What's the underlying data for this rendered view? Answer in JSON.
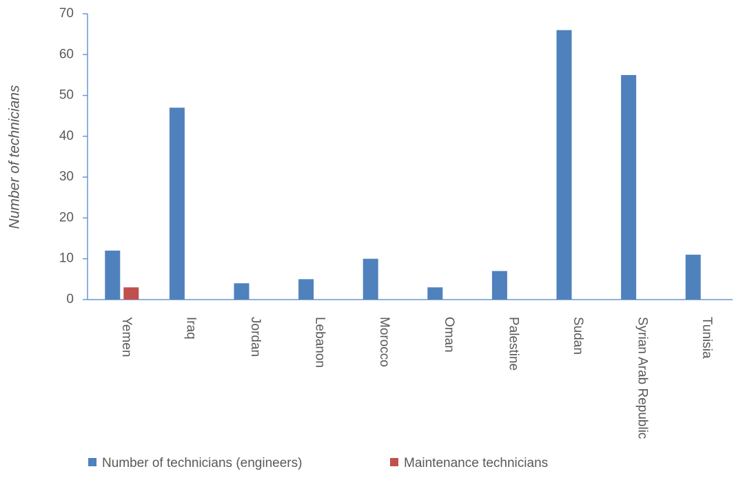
{
  "chart_data": {
    "type": "bar",
    "y_label": "Number of technicians",
    "categories": [
      "Yemen",
      "Iraq",
      "Jordan",
      "Lebanon",
      "Morocco",
      "Oman",
      "Palestine",
      "Sudan",
      "Syrian Arab Republic",
      "Tunisia"
    ],
    "series": [
      {
        "name": "Number of technicians (engineers)",
        "color": "#4f81bd",
        "values": [
          12,
          47,
          4,
          5,
          10,
          3,
          7,
          66,
          55,
          11
        ]
      },
      {
        "name": "Maintenance technicians",
        "color": "#c0504d",
        "values": [
          3,
          0,
          0,
          0,
          0,
          0,
          0,
          0,
          0,
          0
        ]
      }
    ],
    "ylim": [
      0,
      70
    ],
    "yticks": [
      0,
      10,
      20,
      30,
      40,
      50,
      60,
      70
    ],
    "legend": "bottom"
  }
}
